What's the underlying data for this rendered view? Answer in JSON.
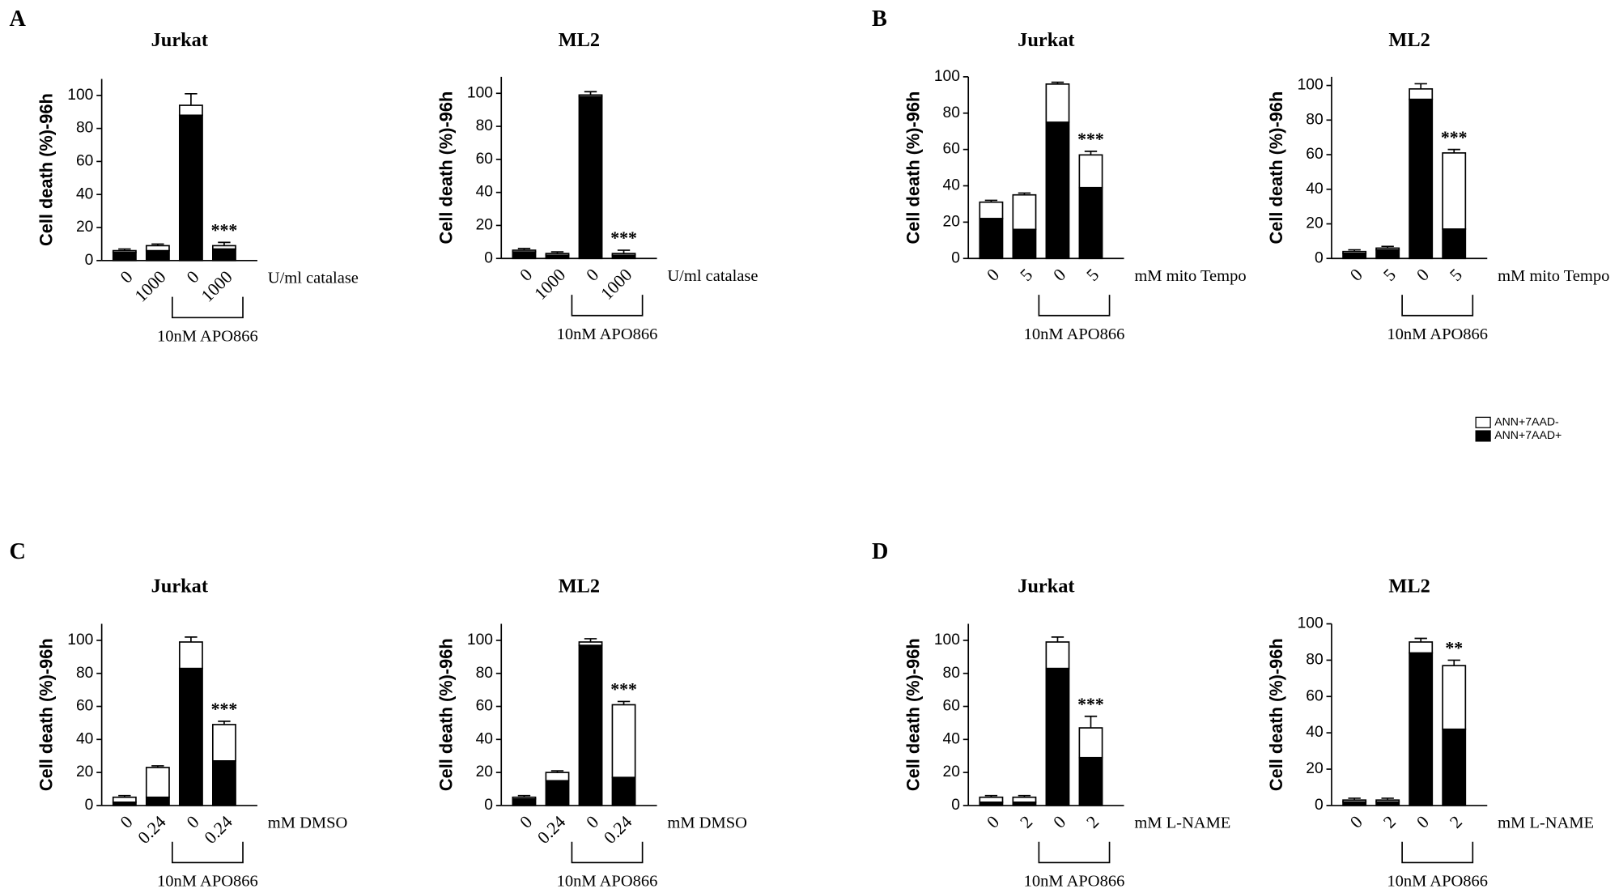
{
  "panel_labels": [
    "A",
    "B",
    "C",
    "D"
  ],
  "chart_data": [
    {
      "type": "stacked_bar",
      "title": "Jurkat",
      "ylabel": "Cell death (%)-96h",
      "xlabel": "U/ml catalase",
      "group_label": "10nM APO866",
      "categories": [
        "0",
        "1000",
        "0",
        "1000"
      ],
      "ylim": [
        0,
        110
      ],
      "yticks": [
        0,
        20,
        40,
        60,
        80,
        100
      ],
      "series": [
        {
          "name": "ANN+7AAD+",
          "color": "#000000",
          "values": [
            5,
            6,
            88,
            7
          ],
          "errors": [
            null,
            null,
            null,
            null
          ]
        },
        {
          "name": "ANN+7AAD-",
          "color": "#ffffff",
          "values": [
            1,
            3,
            6,
            2
          ],
          "errors": [
            1,
            1,
            7,
            2
          ]
        }
      ],
      "significance": [
        null,
        null,
        null,
        "***"
      ]
    },
    {
      "type": "stacked_bar",
      "title": "ML2",
      "ylabel": "Cell death (%)-96h",
      "xlabel": "U/ml catalase",
      "group_label": "10nM APO866",
      "categories": [
        "0",
        "1000",
        "0",
        "1000"
      ],
      "ylim": [
        0,
        110
      ],
      "yticks": [
        0,
        20,
        40,
        60,
        80,
        100
      ],
      "series": [
        {
          "name": "ANN+7AAD+",
          "color": "#000000",
          "values": [
            4,
            2,
            98,
            2
          ],
          "errors": [
            null,
            null,
            null,
            null
          ]
        },
        {
          "name": "ANN+7AAD-",
          "color": "#ffffff",
          "values": [
            1,
            1,
            1,
            1
          ],
          "errors": [
            1,
            1,
            2,
            2
          ]
        }
      ],
      "significance": [
        null,
        null,
        null,
        "***"
      ]
    },
    {
      "type": "stacked_bar",
      "title": "Jurkat",
      "ylabel": "Cell death (%)-96h",
      "xlabel": "mM mito Tempo",
      "group_label": "10nM APO866",
      "categories": [
        "0",
        "5",
        "0",
        "5"
      ],
      "ylim": [
        0,
        100
      ],
      "yticks": [
        0,
        20,
        40,
        60,
        80,
        100
      ],
      "series": [
        {
          "name": "ANN+7AAD+",
          "color": "#000000",
          "values": [
            22,
            16,
            75,
            39
          ],
          "errors": [
            8,
            7,
            1,
            2
          ]
        },
        {
          "name": "ANN+7AAD-",
          "color": "#ffffff",
          "values": [
            9,
            19,
            21,
            18
          ],
          "errors": [
            1,
            1,
            1,
            2
          ]
        }
      ],
      "significance": [
        null,
        null,
        null,
        "***"
      ]
    },
    {
      "type": "stacked_bar",
      "title": "ML2",
      "ylabel": "Cell death (%)-96h",
      "xlabel": "mM mito Tempo",
      "group_label": "10nM APO866",
      "categories": [
        "0",
        "5",
        "0",
        "5"
      ],
      "ylim": [
        0,
        105
      ],
      "yticks": [
        0,
        20,
        40,
        60,
        80,
        100
      ],
      "series": [
        {
          "name": "ANN+7AAD+",
          "color": "#000000",
          "values": [
            3,
            5,
            92,
            17
          ],
          "errors": [
            null,
            null,
            2,
            2
          ]
        },
        {
          "name": "ANN+7AAD-",
          "color": "#ffffff",
          "values": [
            1,
            1,
            6,
            44
          ],
          "errors": [
            1,
            1,
            3,
            2
          ]
        }
      ],
      "significance": [
        null,
        null,
        null,
        "***"
      ]
    },
    {
      "type": "stacked_bar",
      "title": "Jurkat",
      "ylabel": "Cell death (%)-96h",
      "xlabel": "mM DMSO",
      "group_label": "10nM APO866",
      "categories": [
        "0",
        "0.24",
        "0",
        "0.24"
      ],
      "ylim": [
        0,
        110
      ],
      "yticks": [
        0,
        20,
        40,
        60,
        80,
        100
      ],
      "series": [
        {
          "name": "ANN+7AAD+",
          "color": "#000000",
          "values": [
            2,
            5,
            83,
            27
          ],
          "errors": [
            null,
            1,
            3,
            3
          ]
        },
        {
          "name": "ANN+7AAD-",
          "color": "#ffffff",
          "values": [
            3,
            18,
            16,
            22
          ],
          "errors": [
            1,
            1,
            3,
            2
          ]
        }
      ],
      "significance": [
        null,
        null,
        null,
        "***"
      ]
    },
    {
      "type": "stacked_bar",
      "title": "ML2",
      "ylabel": "Cell death (%)-96h",
      "xlabel": "mM DMSO",
      "group_label": "10nM APO866",
      "categories": [
        "0",
        "0.24",
        "0",
        "0.24"
      ],
      "ylim": [
        0,
        110
      ],
      "yticks": [
        0,
        20,
        40,
        60,
        80,
        100
      ],
      "series": [
        {
          "name": "ANN+7AAD+",
          "color": "#000000",
          "values": [
            4,
            15,
            97,
            17
          ],
          "errors": [
            null,
            null,
            null,
            2
          ]
        },
        {
          "name": "ANN+7AAD-",
          "color": "#ffffff",
          "values": [
            1,
            5,
            2,
            44
          ],
          "errors": [
            1,
            1,
            2,
            2
          ]
        }
      ],
      "significance": [
        null,
        null,
        null,
        "***"
      ]
    },
    {
      "type": "stacked_bar",
      "title": "Jurkat",
      "ylabel": "Cell death (%)-96h",
      "xlabel": "mM L-NAME",
      "group_label": "10nM APO866",
      "categories": [
        "0",
        "2",
        "0",
        "2"
      ],
      "ylim": [
        0,
        110
      ],
      "yticks": [
        0,
        20,
        40,
        60,
        80,
        100
      ],
      "series": [
        {
          "name": "ANN+7AAD+",
          "color": "#000000",
          "values": [
            2,
            2,
            83,
            29
          ],
          "errors": [
            null,
            null,
            3,
            6
          ]
        },
        {
          "name": "ANN+7AAD-",
          "color": "#ffffff",
          "values": [
            3,
            3,
            16,
            18
          ],
          "errors": [
            1,
            1,
            3,
            7
          ]
        }
      ],
      "significance": [
        null,
        null,
        null,
        "***"
      ]
    },
    {
      "type": "stacked_bar",
      "title": "ML2",
      "ylabel": "Cell death (%)-96h",
      "xlabel": "mM L-NAME",
      "group_label": "10nM APO866",
      "categories": [
        "0",
        "2",
        "0",
        "2"
      ],
      "ylim": [
        0,
        100
      ],
      "yticks": [
        0,
        20,
        40,
        60,
        80,
        100
      ],
      "series": [
        {
          "name": "ANN+7AAD+",
          "color": "#000000",
          "values": [
            2,
            2,
            84,
            42
          ],
          "errors": [
            null,
            null,
            null,
            2
          ]
        },
        {
          "name": "ANN+7AAD-",
          "color": "#ffffff",
          "values": [
            1,
            1,
            6,
            35
          ],
          "errors": [
            1,
            1,
            2,
            3
          ]
        }
      ],
      "significance": [
        null,
        null,
        null,
        "**"
      ]
    }
  ]
}
